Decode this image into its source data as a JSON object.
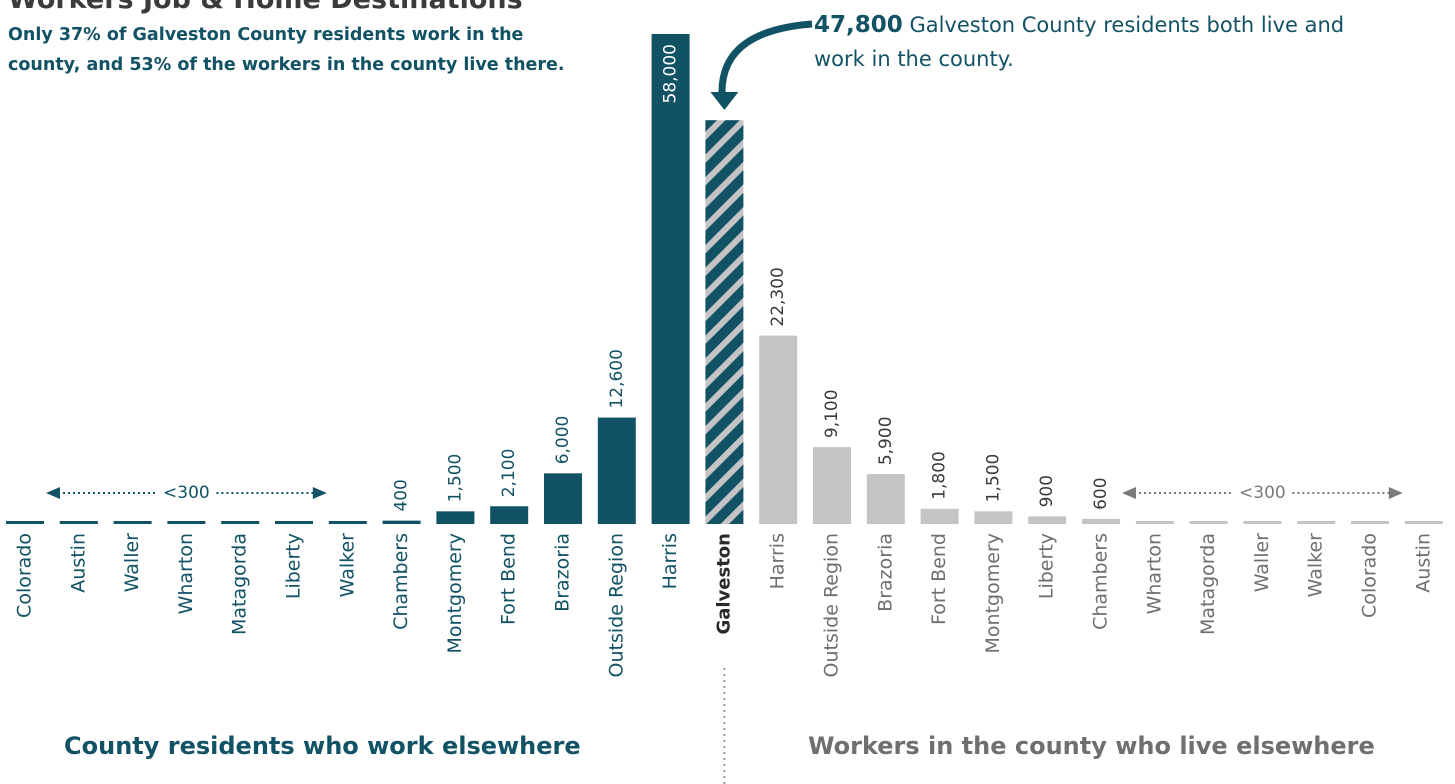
{
  "title": "Workers Job & Home Destinations",
  "subtitle": "Only 37% of Galveston County residents work in the county, and 53% of the workers in the county live there.",
  "callout": {
    "number": "47,800",
    "text": " Galveston County residents both live and work in the county."
  },
  "footer": {
    "left": "County residents who work elsewhere",
    "right": "Workers in the county who live elsewhere"
  },
  "colors": {
    "residents": "#125265",
    "workers": "#c4c4c6",
    "stripe": "#c4c4c6",
    "text_gray": "#6f6f6f"
  },
  "chart_data": {
    "type": "bar",
    "ylim": [
      0,
      58000
    ],
    "center": {
      "category": "Galveston",
      "value": 47800
    },
    "left_series": {
      "name": "County residents who work elsewhere",
      "categories": [
        "Colorado",
        "Austin",
        "Waller",
        "Wharton",
        "Matagorda",
        "Liberty",
        "Walker",
        "Chambers",
        "Montgomery",
        "Fort Bend",
        "Brazoria",
        "Outside Region",
        "Harris"
      ],
      "values": [
        300,
        300,
        300,
        300,
        300,
        300,
        300,
        400,
        1500,
        2100,
        6000,
        12600,
        58000
      ],
      "labels": [
        "",
        "",
        "",
        "",
        "",
        "",
        "",
        "400",
        "1,500",
        "2,100",
        "6,000",
        "12,600",
        "58,000"
      ],
      "small_note": "<300"
    },
    "right_series": {
      "name": "Workers in the county who live elsewhere",
      "categories": [
        "Harris",
        "Outside Region",
        "Brazoria",
        "Fort Bend",
        "Montgomery",
        "Liberty",
        "Chambers",
        "Wharton",
        "Matagorda",
        "Waller",
        "Walker",
        "Colorado",
        "Austin"
      ],
      "values": [
        22300,
        9100,
        5900,
        1800,
        1500,
        900,
        600,
        300,
        300,
        300,
        300,
        300,
        300
      ],
      "labels": [
        "22,300",
        "9,100",
        "5,900",
        "1,800",
        "1,500",
        "900",
        "600",
        "",
        "",
        "",
        "",
        "",
        ""
      ],
      "small_note": "<300"
    }
  }
}
